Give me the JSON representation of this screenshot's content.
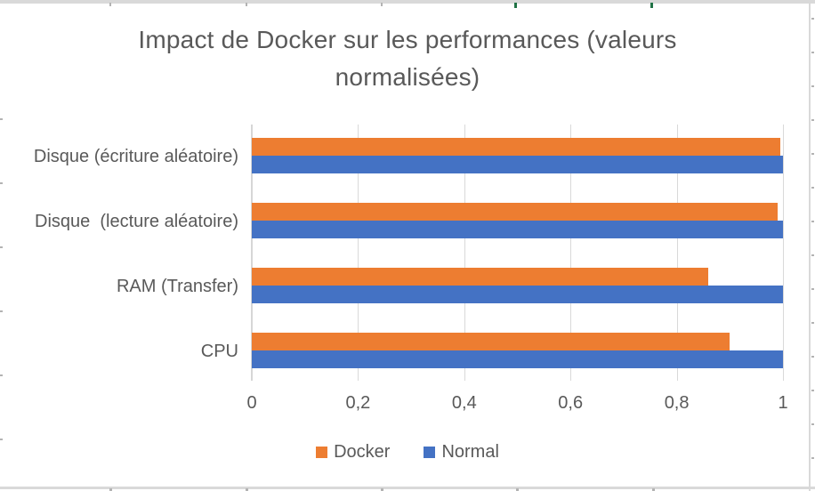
{
  "chart_data": {
    "type": "bar",
    "orientation": "horizontal",
    "title": "Impact de Docker sur les performances (valeurs normalisées)",
    "categories": [
      "Disque (écriture aléatoire)",
      "Disque  (lecture aléatoire)",
      "RAM (Transfer)",
      "CPU"
    ],
    "series": [
      {
        "name": "Docker",
        "color": "#ED7D31",
        "values": [
          0.995,
          0.99,
          0.86,
          0.9
        ]
      },
      {
        "name": "Normal",
        "color": "#4472C4",
        "values": [
          1.0,
          1.0,
          1.0,
          1.0
        ]
      }
    ],
    "xlim": [
      0,
      1
    ],
    "x_ticks": [
      "0",
      "0,2",
      "0,4",
      "0,6",
      "0,8",
      "1"
    ],
    "x_tick_values": [
      0,
      0.2,
      0.4,
      0.6,
      0.8,
      1.0
    ],
    "grid": true,
    "legend_position": "bottom",
    "title_color": "#595959",
    "axis_text_color": "#595959",
    "gridline_color": "#d9d9d9"
  }
}
